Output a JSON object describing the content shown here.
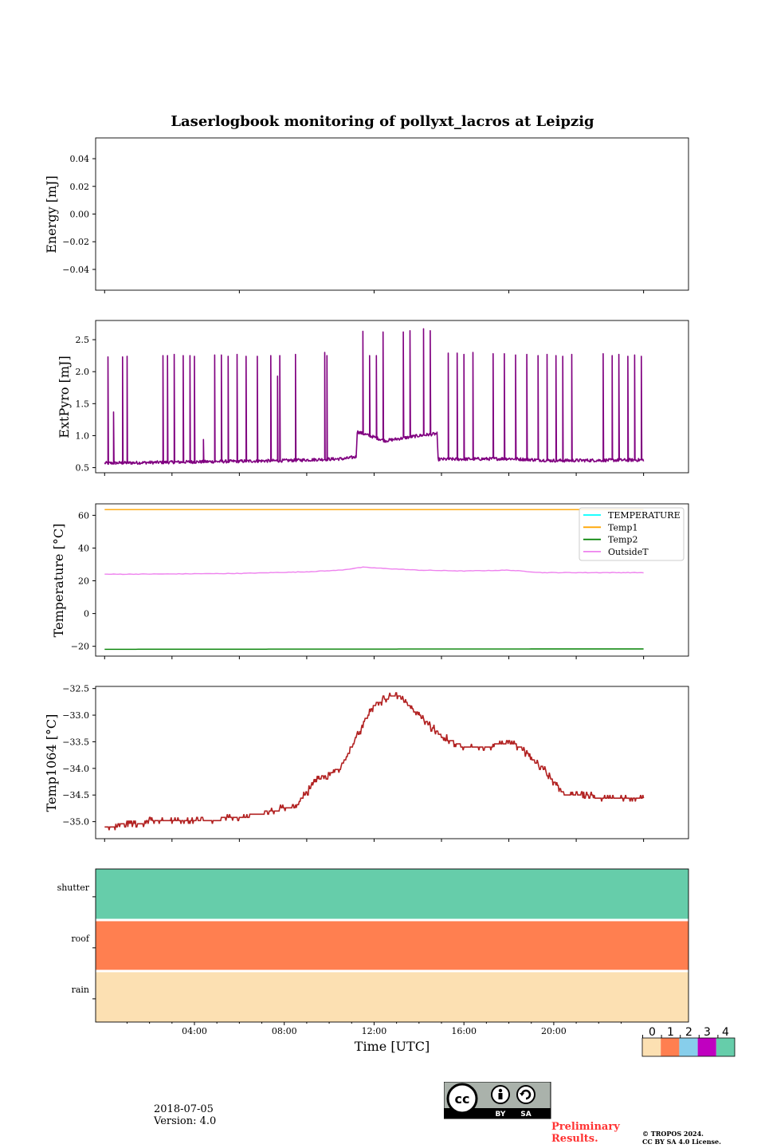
{
  "title": "Laserlogbook monitoring of pollyxt_lacros at Leipzig",
  "xlabel": "Time [UTC]",
  "date": "2018-07-05",
  "version": "Version: 4.0",
  "preliminary": [
    "Preliminary",
    "Results."
  ],
  "copyright": [
    "© TROPOS 2024.",
    "CC BY SA 4.0 License."
  ],
  "cc_badge": {
    "by": "BY",
    "sa": "SA"
  },
  "colors": {
    "energy": "#000000",
    "extpyro": "#800080",
    "temperature": "#00ffff",
    "temp1": "#ffa500",
    "temp2": "#008000",
    "outside": "#ee82ee",
    "temp1064": "#b22222",
    "status_0": "#fce0b2",
    "status_1": "#ff7f50",
    "status_2": "#87ceeb",
    "status_3": "#c000c0",
    "status_4": "#66cdaa"
  },
  "chart_data": [
    {
      "type": "line",
      "ylabel": "Energy [mJ]",
      "ylim": [
        -0.055,
        0.055
      ],
      "yticks": [
        -0.04,
        -0.02,
        0.0,
        0.02,
        0.04
      ],
      "ytick_labels": [
        "−0.04",
        "−0.02",
        "0.00",
        "0.02",
        "0.04"
      ],
      "xlim": [
        -0.4,
        26.0
      ],
      "series": []
    },
    {
      "type": "line",
      "ylabel": "ExtPyro [mJ]",
      "ylim": [
        0.42,
        2.8
      ],
      "yticks": [
        0.5,
        1.0,
        1.5,
        2.0,
        2.5
      ],
      "ytick_labels": [
        "0.5",
        "1.0",
        "1.5",
        "2.0",
        "2.5"
      ],
      "xlim": [
        -0.4,
        26.0
      ],
      "baseline": [
        [
          0.0,
          0.57
        ],
        [
          4.0,
          0.59
        ],
        [
          8.0,
          0.61
        ],
        [
          10.7,
          0.64
        ],
        [
          11.2,
          0.67
        ],
        [
          11.25,
          1.06
        ],
        [
          12.5,
          0.92
        ],
        [
          14.0,
          1.0
        ],
        [
          14.8,
          1.03
        ],
        [
          14.85,
          0.63
        ],
        [
          18.0,
          0.64
        ],
        [
          20.0,
          0.61
        ],
        [
          24.0,
          0.62
        ]
      ],
      "spikes": [
        [
          0.15,
          2.23
        ],
        [
          0.4,
          1.37
        ],
        [
          0.8,
          2.23
        ],
        [
          1.0,
          2.24
        ],
        [
          2.6,
          2.25
        ],
        [
          2.8,
          2.25
        ],
        [
          3.1,
          2.27
        ],
        [
          3.5,
          2.25
        ],
        [
          3.8,
          2.25
        ],
        [
          4.0,
          2.24
        ],
        [
          4.4,
          0.94
        ],
        [
          4.9,
          2.26
        ],
        [
          5.2,
          2.26
        ],
        [
          5.5,
          2.24
        ],
        [
          5.9,
          2.27
        ],
        [
          6.3,
          2.24
        ],
        [
          6.8,
          2.24
        ],
        [
          7.4,
          2.25
        ],
        [
          7.7,
          1.93
        ],
        [
          7.8,
          2.25
        ],
        [
          8.5,
          2.27
        ],
        [
          9.8,
          2.3
        ],
        [
          9.9,
          2.25
        ],
        [
          11.5,
          2.63
        ],
        [
          11.8,
          2.25
        ],
        [
          12.1,
          2.25
        ],
        [
          12.4,
          2.62
        ],
        [
          13.3,
          2.62
        ],
        [
          13.6,
          2.64
        ],
        [
          14.2,
          2.67
        ],
        [
          14.5,
          2.64
        ],
        [
          15.3,
          2.29
        ],
        [
          15.7,
          2.29
        ],
        [
          16.0,
          2.27
        ],
        [
          16.4,
          2.3
        ],
        [
          17.3,
          2.28
        ],
        [
          17.8,
          2.28
        ],
        [
          18.3,
          2.26
        ],
        [
          18.8,
          2.27
        ],
        [
          19.3,
          2.25
        ],
        [
          19.7,
          2.27
        ],
        [
          20.1,
          2.25
        ],
        [
          20.4,
          2.24
        ],
        [
          20.8,
          2.27
        ],
        [
          22.2,
          2.28
        ],
        [
          22.6,
          2.25
        ],
        [
          22.9,
          2.27
        ],
        [
          23.3,
          2.24
        ],
        [
          23.6,
          2.26
        ],
        [
          23.9,
          2.24
        ]
      ],
      "series": [
        {
          "name": "",
          "color": "#800080"
        }
      ]
    },
    {
      "type": "line",
      "ylabel": "Temperature [°C]",
      "ylim": [
        -26,
        67
      ],
      "yticks": [
        -20,
        0,
        20,
        40,
        60
      ],
      "ytick_labels": [
        "−20",
        "0",
        "20",
        "40",
        "60"
      ],
      "xlim": [
        -0.4,
        26.0
      ],
      "legend_position": "top-right",
      "series": [
        {
          "name": "TEMPERATURE",
          "color": "#00ffff",
          "values": []
        },
        {
          "name": "Temp1",
          "color": "#ffa500",
          "x": [
            0,
            24
          ],
          "values": [
            63.5,
            63.5
          ]
        },
        {
          "name": "Temp2",
          "color": "#008000",
          "x": [
            0,
            24
          ],
          "values": [
            -21.8,
            -21.6
          ]
        },
        {
          "name": "OutsideT",
          "color": "#ee82ee",
          "x": [
            0,
            3,
            6,
            9,
            10.5,
            11.5,
            12.5,
            14,
            16,
            18,
            19.5,
            21,
            24
          ],
          "values": [
            24.0,
            24.2,
            24.5,
            25.5,
            26.5,
            28.3,
            27.5,
            26.5,
            26.0,
            26.5,
            25.0,
            25.0,
            25.0
          ]
        }
      ]
    },
    {
      "type": "line",
      "ylabel": "Temp1064 [°C]",
      "ylim": [
        -35.32,
        -32.46
      ],
      "yticks": [
        -35.0,
        -34.5,
        -34.0,
        -33.5,
        -33.0,
        -32.5
      ],
      "ytick_labels": [
        "−35.0",
        "−34.5",
        "−34.0",
        "−33.5",
        "−33.0",
        "−32.5"
      ],
      "xlim": [
        -0.4,
        26.0
      ],
      "series": [
        {
          "name": "",
          "color": "#b22222",
          "x": [
            0,
            2,
            4,
            6,
            8,
            8.5,
            9.5,
            10.5,
            11.5,
            12,
            13,
            14,
            15,
            16,
            17,
            18,
            18.5,
            19.5,
            20.5,
            21.5,
            22,
            24
          ],
          "values": [
            -35.1,
            -35.0,
            -34.98,
            -34.93,
            -34.75,
            -34.7,
            -34.2,
            -34.0,
            -33.2,
            -32.8,
            -32.6,
            -33.0,
            -33.4,
            -33.6,
            -33.6,
            -33.5,
            -33.6,
            -34.0,
            -34.5,
            -34.5,
            -34.55,
            -34.55
          ]
        }
      ]
    },
    {
      "type": "heatmap",
      "rows": [
        "shutter",
        "roof",
        "rain"
      ],
      "row_status": [
        4,
        1,
        0
      ],
      "xlim": [
        -0.4,
        26.0
      ],
      "xticks": [
        4,
        8,
        12,
        16,
        20
      ],
      "xtick_labels": [
        "04:00",
        "08:00",
        "12:00",
        "16:00",
        "20:00"
      ],
      "colorbar": {
        "ticks": [
          "0",
          "1",
          "2",
          "3",
          "4"
        ]
      }
    }
  ]
}
